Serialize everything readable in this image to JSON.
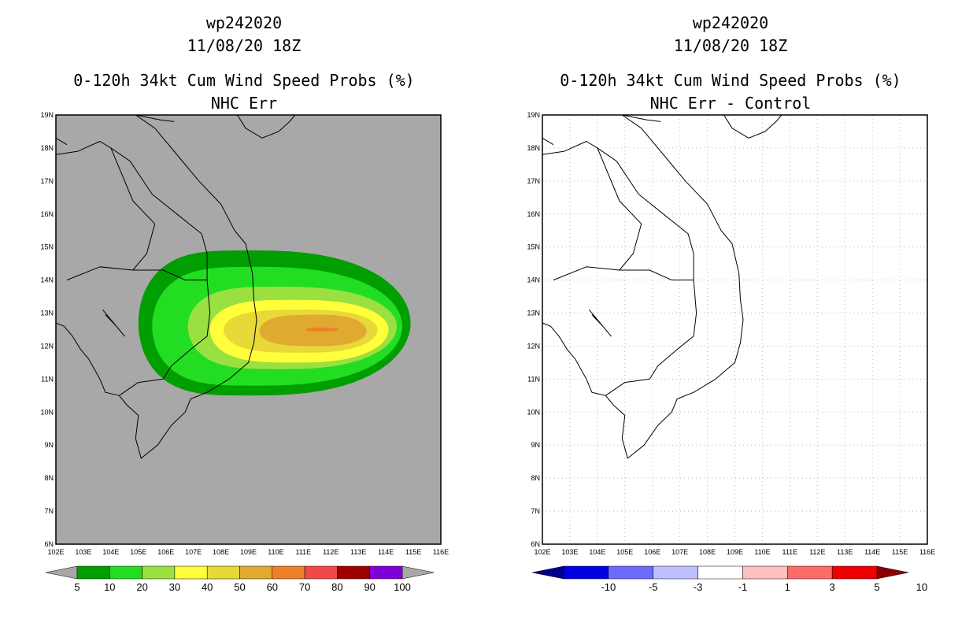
{
  "chart_data": [
    {
      "type": "heatmap",
      "storm_id": "wp242020",
      "datetime": "11/08/20 18Z",
      "title": "0-120h 34kt Cum Wind Speed Probs (%)",
      "subtitle": "NHC Err",
      "xlim": [
        102,
        116
      ],
      "ylim": [
        6,
        19
      ],
      "x_ticks": [
        "102E",
        "103E",
        "104E",
        "105E",
        "106E",
        "107E",
        "108E",
        "109E",
        "110E",
        "111E",
        "112E",
        "113E",
        "114E",
        "115E",
        "116E"
      ],
      "y_ticks": [
        "6N",
        "7N",
        "8N",
        "9N",
        "10N",
        "11N",
        "12N",
        "13N",
        "14N",
        "15N",
        "16N",
        "17N",
        "18N",
        "19N"
      ],
      "background": "#a8a8a8",
      "contours": [
        {
          "level": 5,
          "lon": [
            105.0,
            114.9
          ],
          "lat": [
            10.5,
            14.9
          ],
          "peak": [
            109.1,
            12.7
          ]
        },
        {
          "level": 10,
          "lon": [
            105.5,
            114.6
          ],
          "lat": [
            10.8,
            14.4
          ],
          "peak": [
            109.3,
            12.6
          ]
        },
        {
          "level": 20,
          "lon": [
            106.8,
            114.4
          ],
          "lat": [
            11.3,
            13.8
          ],
          "peak": [
            110.2,
            12.6
          ]
        },
        {
          "level": 30,
          "lon": [
            107.6,
            114.1
          ],
          "lat": [
            11.5,
            13.4
          ],
          "peak": [
            110.8,
            12.5
          ]
        },
        {
          "level": 40,
          "lon": [
            108.1,
            113.7
          ],
          "lat": [
            11.8,
            13.1
          ],
          "peak": [
            111.1,
            12.5
          ]
        },
        {
          "level": 50,
          "lon": [
            109.4,
            113.3
          ],
          "lat": [
            12.0,
            12.95
          ],
          "peak": [
            111.6,
            12.45
          ]
        },
        {
          "level": 60,
          "lon": [
            111.1,
            112.3
          ],
          "lat": [
            12.44,
            12.56
          ],
          "peak": [
            111.7,
            12.5
          ]
        }
      ],
      "colorbar": {
        "labels": [
          "5",
          "10",
          "20",
          "30",
          "40",
          "50",
          "60",
          "70",
          "80",
          "90",
          "100"
        ],
        "colors": [
          "#009e00",
          "#22dd22",
          "#99e040",
          "#ffff3c",
          "#e8d838",
          "#e0aa30",
          "#ee8028",
          "#f04848",
          "#9e0000",
          "#8000d8"
        ],
        "under": "#a8a8a8",
        "over": "#a8a8a8"
      }
    },
    {
      "type": "heatmap",
      "storm_id": "wp242020",
      "datetime": "11/08/20 18Z",
      "title": "0-120h 34kt Cum Wind Speed Probs (%)",
      "subtitle": "NHC Err - Control",
      "xlim": [
        102,
        116
      ],
      "ylim": [
        6,
        19
      ],
      "x_ticks": [
        "102E",
        "103E",
        "104E",
        "105E",
        "106E",
        "107E",
        "108E",
        "109E",
        "110E",
        "111E",
        "112E",
        "113E",
        "114E",
        "115E",
        "116E"
      ],
      "y_ticks": [
        "6N",
        "7N",
        "8N",
        "9N",
        "10N",
        "11N",
        "12N",
        "13N",
        "14N",
        "15N",
        "16N",
        "17N",
        "18N",
        "19N"
      ],
      "background": "#ffffff",
      "grid": true,
      "contours": [],
      "colorbar": {
        "labels": [
          "-10",
          "-5",
          "-3",
          "-1",
          "1",
          "3",
          "5",
          "10"
        ],
        "colors": [
          "#0000e0",
          "#6a6aff",
          "#c0c0ff",
          "#ffffff",
          "#ffc0c0",
          "#ff6a6a",
          "#ee0000"
        ],
        "under": "#00008a",
        "over": "#8a0000"
      }
    }
  ]
}
